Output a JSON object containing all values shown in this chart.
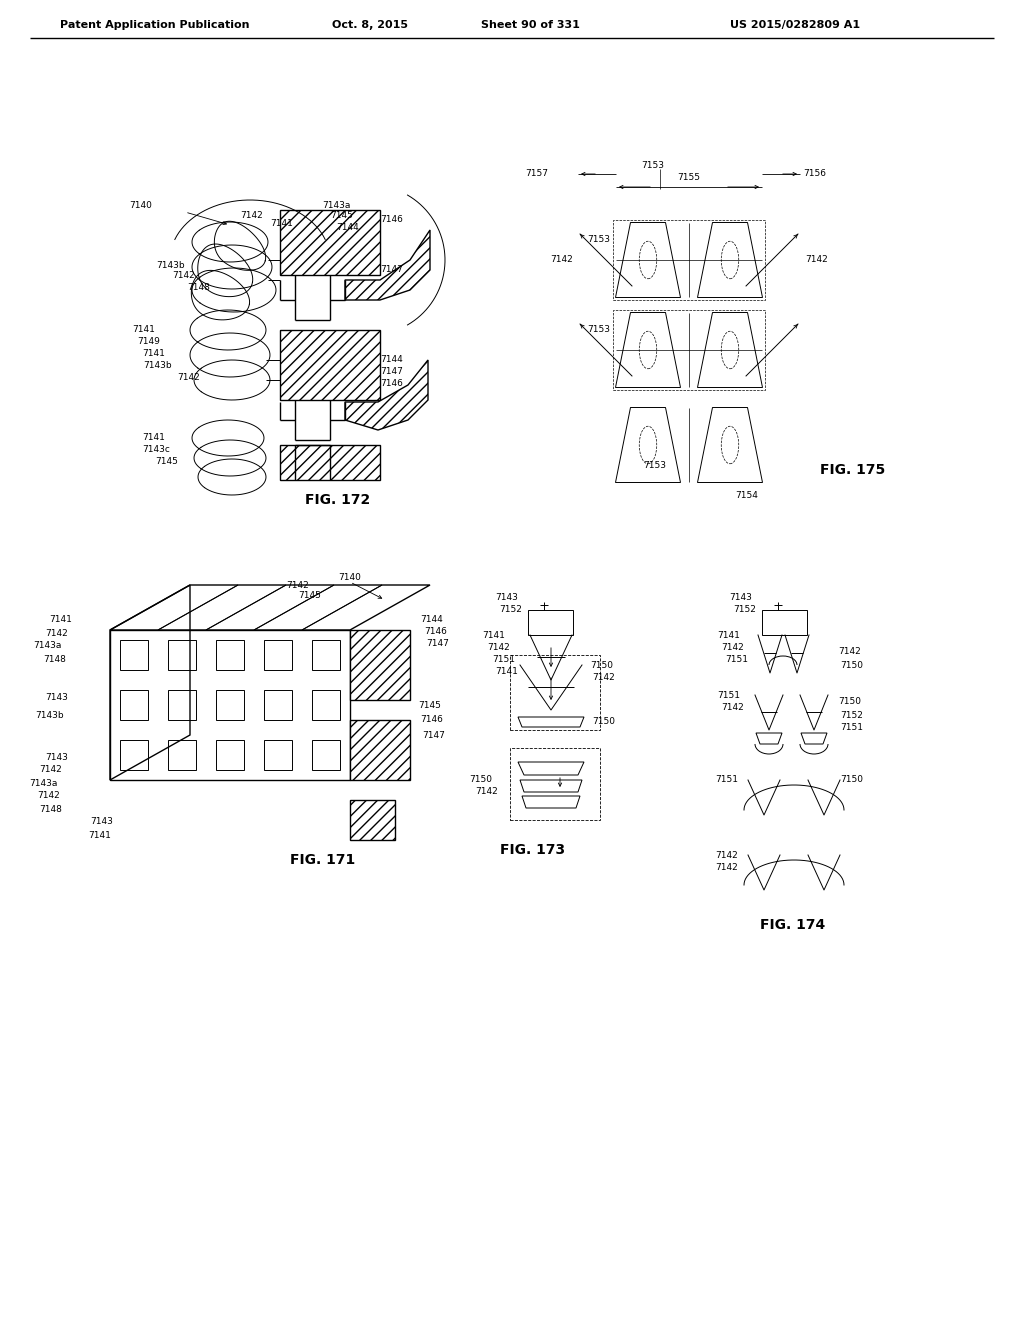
{
  "header_left": "Patent Application Publication",
  "header_mid": "Oct. 8, 2015",
  "header_sheet": "Sheet 90 of 331",
  "header_right": "US 2015/0282809 A1",
  "fig172_label": "FIG. 172",
  "fig171_label": "FIG. 171",
  "fig173_label": "FIG. 173",
  "fig174_label": "FIG. 174",
  "fig175_label": "FIG. 175",
  "bg_color": "#ffffff",
  "line_color": "#000000"
}
